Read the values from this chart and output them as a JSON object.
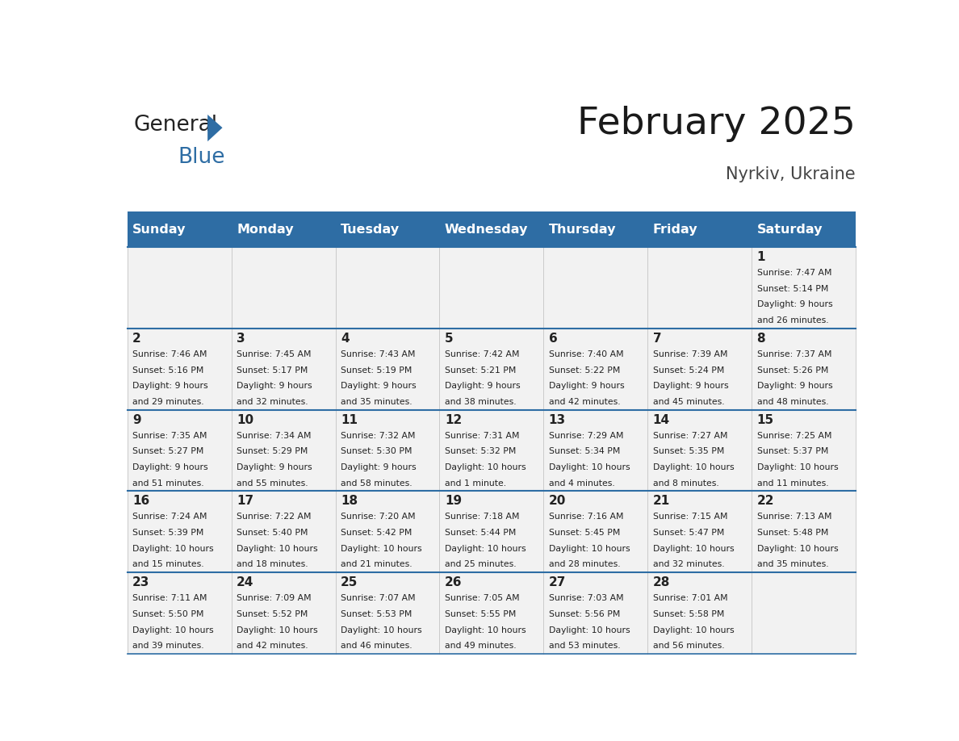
{
  "title": "February 2025",
  "subtitle": "Nyrkiv, Ukraine",
  "header_bg": "#2E6DA4",
  "header_text_color": "#FFFFFF",
  "days_of_week": [
    "Sunday",
    "Monday",
    "Tuesday",
    "Wednesday",
    "Thursday",
    "Friday",
    "Saturday"
  ],
  "row_bg": "#F2F2F2",
  "cell_text_color": "#222222",
  "separator_color": "#2E6DA4",
  "calendar_data": [
    [
      {
        "day": null,
        "sunrise": null,
        "sunset": null,
        "daylight": null
      },
      {
        "day": null,
        "sunrise": null,
        "sunset": null,
        "daylight": null
      },
      {
        "day": null,
        "sunrise": null,
        "sunset": null,
        "daylight": null
      },
      {
        "day": null,
        "sunrise": null,
        "sunset": null,
        "daylight": null
      },
      {
        "day": null,
        "sunrise": null,
        "sunset": null,
        "daylight": null
      },
      {
        "day": null,
        "sunrise": null,
        "sunset": null,
        "daylight": null
      },
      {
        "day": 1,
        "sunrise": "7:47 AM",
        "sunset": "5:14 PM",
        "daylight": "9 hours\nand 26 minutes."
      }
    ],
    [
      {
        "day": 2,
        "sunrise": "7:46 AM",
        "sunset": "5:16 PM",
        "daylight": "9 hours\nand 29 minutes."
      },
      {
        "day": 3,
        "sunrise": "7:45 AM",
        "sunset": "5:17 PM",
        "daylight": "9 hours\nand 32 minutes."
      },
      {
        "day": 4,
        "sunrise": "7:43 AM",
        "sunset": "5:19 PM",
        "daylight": "9 hours\nand 35 minutes."
      },
      {
        "day": 5,
        "sunrise": "7:42 AM",
        "sunset": "5:21 PM",
        "daylight": "9 hours\nand 38 minutes."
      },
      {
        "day": 6,
        "sunrise": "7:40 AM",
        "sunset": "5:22 PM",
        "daylight": "9 hours\nand 42 minutes."
      },
      {
        "day": 7,
        "sunrise": "7:39 AM",
        "sunset": "5:24 PM",
        "daylight": "9 hours\nand 45 minutes."
      },
      {
        "day": 8,
        "sunrise": "7:37 AM",
        "sunset": "5:26 PM",
        "daylight": "9 hours\nand 48 minutes."
      }
    ],
    [
      {
        "day": 9,
        "sunrise": "7:35 AM",
        "sunset": "5:27 PM",
        "daylight": "9 hours\nand 51 minutes."
      },
      {
        "day": 10,
        "sunrise": "7:34 AM",
        "sunset": "5:29 PM",
        "daylight": "9 hours\nand 55 minutes."
      },
      {
        "day": 11,
        "sunrise": "7:32 AM",
        "sunset": "5:30 PM",
        "daylight": "9 hours\nand 58 minutes."
      },
      {
        "day": 12,
        "sunrise": "7:31 AM",
        "sunset": "5:32 PM",
        "daylight": "10 hours\nand 1 minute."
      },
      {
        "day": 13,
        "sunrise": "7:29 AM",
        "sunset": "5:34 PM",
        "daylight": "10 hours\nand 4 minutes."
      },
      {
        "day": 14,
        "sunrise": "7:27 AM",
        "sunset": "5:35 PM",
        "daylight": "10 hours\nand 8 minutes."
      },
      {
        "day": 15,
        "sunrise": "7:25 AM",
        "sunset": "5:37 PM",
        "daylight": "10 hours\nand 11 minutes."
      }
    ],
    [
      {
        "day": 16,
        "sunrise": "7:24 AM",
        "sunset": "5:39 PM",
        "daylight": "10 hours\nand 15 minutes."
      },
      {
        "day": 17,
        "sunrise": "7:22 AM",
        "sunset": "5:40 PM",
        "daylight": "10 hours\nand 18 minutes."
      },
      {
        "day": 18,
        "sunrise": "7:20 AM",
        "sunset": "5:42 PM",
        "daylight": "10 hours\nand 21 minutes."
      },
      {
        "day": 19,
        "sunrise": "7:18 AM",
        "sunset": "5:44 PM",
        "daylight": "10 hours\nand 25 minutes."
      },
      {
        "day": 20,
        "sunrise": "7:16 AM",
        "sunset": "5:45 PM",
        "daylight": "10 hours\nand 28 minutes."
      },
      {
        "day": 21,
        "sunrise": "7:15 AM",
        "sunset": "5:47 PM",
        "daylight": "10 hours\nand 32 minutes."
      },
      {
        "day": 22,
        "sunrise": "7:13 AM",
        "sunset": "5:48 PM",
        "daylight": "10 hours\nand 35 minutes."
      }
    ],
    [
      {
        "day": 23,
        "sunrise": "7:11 AM",
        "sunset": "5:50 PM",
        "daylight": "10 hours\nand 39 minutes."
      },
      {
        "day": 24,
        "sunrise": "7:09 AM",
        "sunset": "5:52 PM",
        "daylight": "10 hours\nand 42 minutes."
      },
      {
        "day": 25,
        "sunrise": "7:07 AM",
        "sunset": "5:53 PM",
        "daylight": "10 hours\nand 46 minutes."
      },
      {
        "day": 26,
        "sunrise": "7:05 AM",
        "sunset": "5:55 PM",
        "daylight": "10 hours\nand 49 minutes."
      },
      {
        "day": 27,
        "sunrise": "7:03 AM",
        "sunset": "5:56 PM",
        "daylight": "10 hours\nand 53 minutes."
      },
      {
        "day": 28,
        "sunrise": "7:01 AM",
        "sunset": "5:58 PM",
        "daylight": "10 hours\nand 56 minutes."
      },
      {
        "day": null,
        "sunrise": null,
        "sunset": null,
        "daylight": null
      }
    ]
  ],
  "logo_color_general": "#222222",
  "logo_color_blue": "#2E6DA4"
}
